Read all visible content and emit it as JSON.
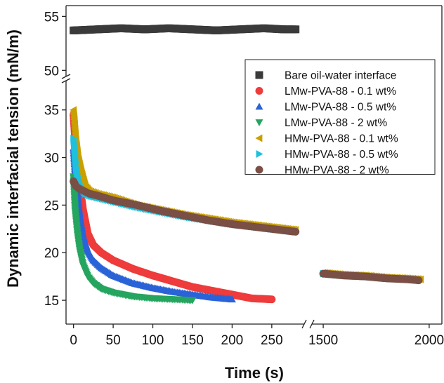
{
  "chart_data": {
    "type": "scatter",
    "xlabel": "Time (s)",
    "ylabel": "Dynamic interfacial tension (mN/m)",
    "x_segments": [
      {
        "range": [
          -5,
          290
        ],
        "ticks": [
          0,
          50,
          100,
          150,
          200,
          250
        ]
      },
      {
        "range": [
          1450,
          2060
        ],
        "ticks": [
          1500,
          2000
        ]
      }
    ],
    "y_segments": [
      {
        "range": [
          12.5,
          38
        ],
        "ticks": [
          15,
          20,
          25,
          30,
          35
        ]
      },
      {
        "range": [
          49.5,
          56
        ],
        "ticks": [
          50,
          55
        ]
      }
    ],
    "legend": "top-right",
    "grid": false,
    "series": [
      {
        "name": "Bare oil-water interface",
        "color": "#3a3a3a",
        "marker": "square",
        "x": [
          0,
          30,
          60,
          90,
          120,
          150,
          180,
          210,
          240,
          265,
          280
        ],
        "y": [
          53.7,
          53.8,
          53.9,
          53.8,
          53.9,
          53.8,
          53.7,
          53.8,
          53.9,
          53.8,
          53.8
        ]
      },
      {
        "name": "LMw-PVA-88 - 0.1 wt%",
        "color": "#ee3b3b",
        "marker": "circle",
        "x": [
          0,
          2,
          5,
          8,
          12,
          18,
          25,
          35,
          50,
          75,
          100,
          125,
          150,
          175,
          200,
          225,
          250
        ],
        "y": [
          34.5,
          32.0,
          29.5,
          27.0,
          24.5,
          22.0,
          20.8,
          20.0,
          19.2,
          18.3,
          17.6,
          17.0,
          16.4,
          16.0,
          15.6,
          15.2,
          15.1
        ]
      },
      {
        "name": "LMw-PVA-88 - 0.5 wt%",
        "color": "#2a62d8",
        "marker": "triangle-up",
        "x": [
          0,
          2,
          5,
          8,
          12,
          18,
          25,
          35,
          50,
          75,
          100,
          125,
          150,
          175,
          200
        ],
        "y": [
          31.0,
          28.5,
          26.0,
          23.8,
          21.8,
          20.2,
          19.2,
          18.4,
          17.6,
          16.8,
          16.3,
          15.9,
          15.6,
          15.3,
          15.1
        ]
      },
      {
        "name": "LMw-PVA-88 - 2 wt%",
        "color": "#25a55f",
        "marker": "triangle-down",
        "x": [
          0,
          2,
          5,
          8,
          12,
          18,
          25,
          35,
          50,
          75,
          100,
          125,
          150
        ],
        "y": [
          28.0,
          24.5,
          22.0,
          20.2,
          18.7,
          17.5,
          16.8,
          16.2,
          15.8,
          15.4,
          15.2,
          15.1,
          15.0
        ]
      },
      {
        "name": "HMw-PVA-88 - 0.1 wt%",
        "color": "#c9a000",
        "marker": "triangle-left",
        "x": [
          0,
          3,
          6,
          10,
          15,
          20,
          30,
          50,
          80,
          110,
          140,
          170,
          200,
          240,
          280,
          1500,
          1600,
          1700,
          1800,
          1900,
          1960
        ],
        "y": [
          35.0,
          32.0,
          30.0,
          28.5,
          27.0,
          26.5,
          26.2,
          25.8,
          25.0,
          24.5,
          24.0,
          23.6,
          23.2,
          22.8,
          22.4,
          17.9,
          17.7,
          17.6,
          17.4,
          17.3,
          17.2
        ]
      },
      {
        "name": "HMw-PVA-88 - 0.5 wt%",
        "color": "#1ec0dc",
        "marker": "triangle-right",
        "x": [
          0,
          3,
          6,
          10,
          15,
          20,
          30,
          50,
          80,
          110,
          140,
          170,
          200,
          240,
          280,
          1500,
          1600,
          1700,
          1800,
          1900
        ],
        "y": [
          32.0,
          29.0,
          27.5,
          26.8,
          26.2,
          26.0,
          25.8,
          25.4,
          24.8,
          24.3,
          23.8,
          23.4,
          23.0,
          22.6,
          22.2,
          17.8,
          17.6,
          17.5,
          17.3,
          17.2
        ]
      },
      {
        "name": "HMw-PVA-88 - 2 wt%",
        "color": "#7a4f45",
        "marker": "circle",
        "x": [
          0,
          3,
          6,
          10,
          15,
          20,
          30,
          50,
          80,
          110,
          140,
          170,
          200,
          240,
          280,
          1500,
          1600,
          1700,
          1800,
          1900,
          1950
        ],
        "y": [
          27.5,
          27.0,
          26.8,
          26.6,
          26.4,
          26.2,
          26.0,
          25.5,
          25.0,
          24.4,
          23.9,
          23.4,
          23.0,
          22.6,
          22.2,
          17.8,
          17.6,
          17.5,
          17.3,
          17.2,
          17.1
        ]
      }
    ]
  }
}
